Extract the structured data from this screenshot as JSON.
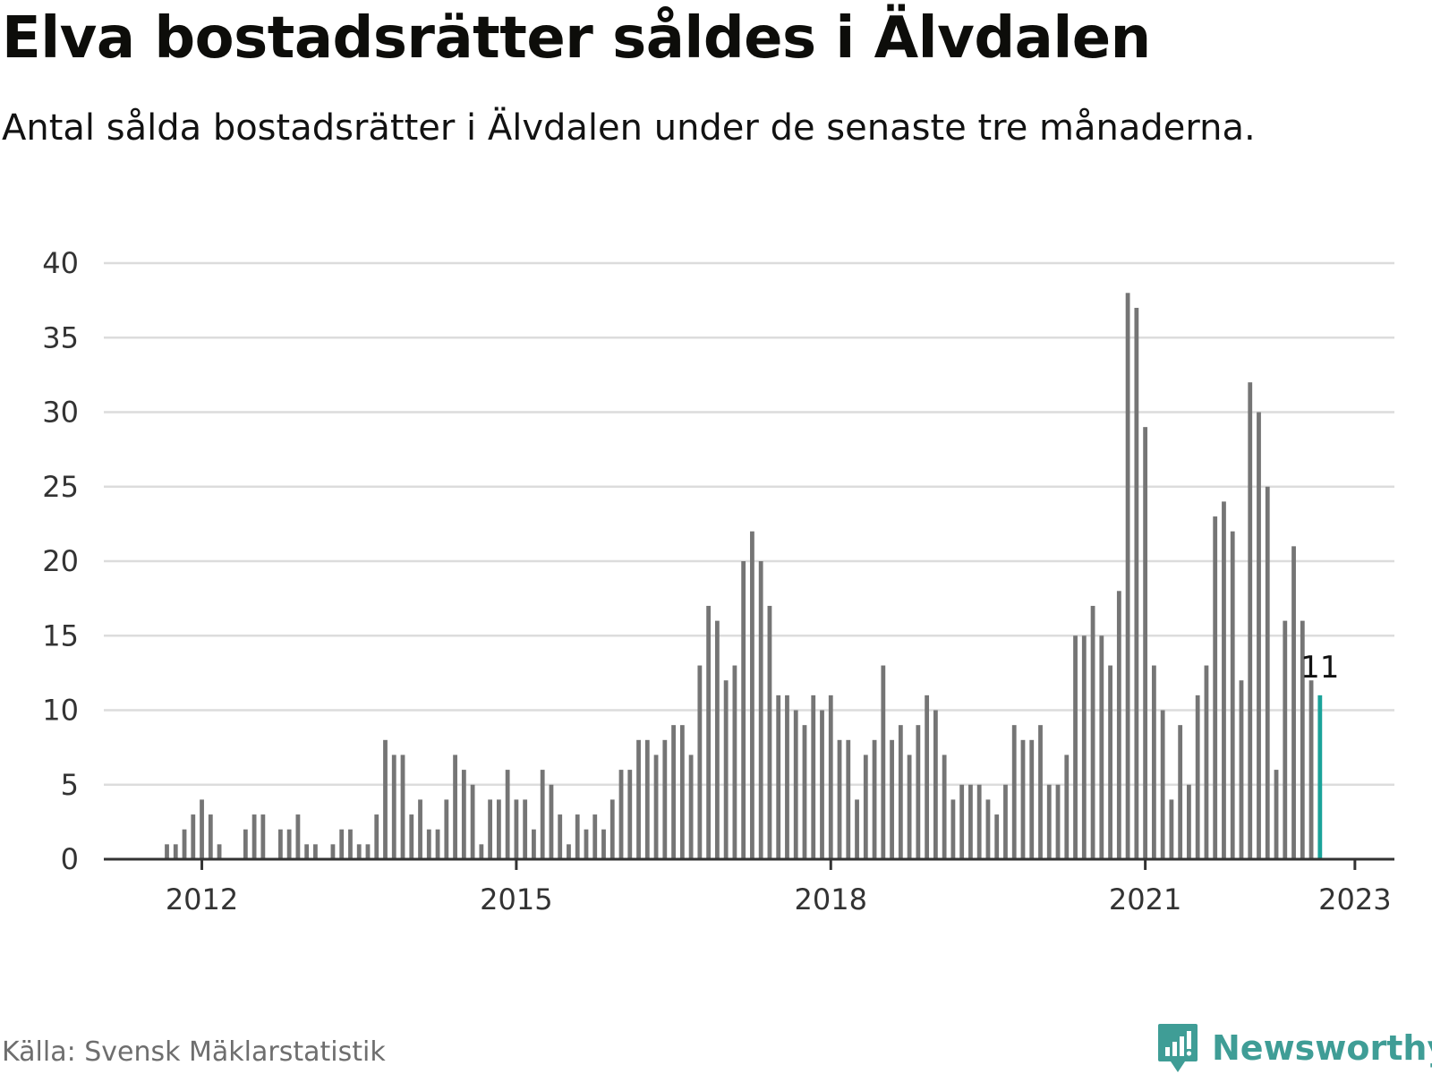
{
  "title": "Elva bostadsrätter såldes i Älvdalen",
  "subtitle": "Antal sålda bostadsrätter i Älvdalen under de senaste tre månaderna.",
  "source": "Källa: Svensk Mäklarstatistik",
  "brand": {
    "name": "Newsworthy",
    "color": "#3f9d96",
    "icon": "newsworthy-logo-icon"
  },
  "colors": {
    "bar": "#757575",
    "highlight": "#1aa39a",
    "grid": "#dcdcdc",
    "axis": "#333333"
  },
  "chart_data": {
    "type": "bar",
    "title": "Elva bostadsrätter såldes i Älvdalen",
    "ylim": [
      0,
      40
    ],
    "y_ticks": [
      0,
      5,
      10,
      15,
      20,
      25,
      30,
      35,
      40
    ],
    "x_ticks": [
      "2012",
      "2015",
      "2018",
      "2021",
      "2023"
    ],
    "grid": true,
    "x_start": "2011-09",
    "frequency": "monthly",
    "highlight_last": true,
    "annotation": "11",
    "values": [
      1,
      1,
      2,
      3,
      4,
      3,
      1,
      0,
      0,
      2,
      3,
      3,
      0,
      2,
      2,
      3,
      1,
      1,
      0,
      1,
      2,
      2,
      1,
      1,
      3,
      8,
      7,
      7,
      3,
      4,
      2,
      2,
      4,
      7,
      6,
      5,
      1,
      4,
      4,
      6,
      4,
      4,
      2,
      6,
      5,
      3,
      1,
      3,
      2,
      3,
      2,
      4,
      6,
      6,
      8,
      8,
      7,
      8,
      9,
      9,
      7,
      13,
      17,
      16,
      12,
      13,
      20,
      22,
      20,
      17,
      11,
      11,
      10,
      9,
      11,
      10,
      11,
      8,
      8,
      4,
      7,
      8,
      13,
      8,
      9,
      7,
      9,
      11,
      10,
      7,
      4,
      5,
      5,
      5,
      4,
      3,
      5,
      9,
      8,
      8,
      9,
      5,
      5,
      7,
      15,
      15,
      17,
      15,
      13,
      18,
      38,
      37,
      29,
      13,
      10,
      4,
      9,
      5,
      11,
      13,
      23,
      24,
      22,
      12,
      32,
      30,
      25,
      6,
      16,
      21,
      16,
      12,
      11
    ]
  }
}
